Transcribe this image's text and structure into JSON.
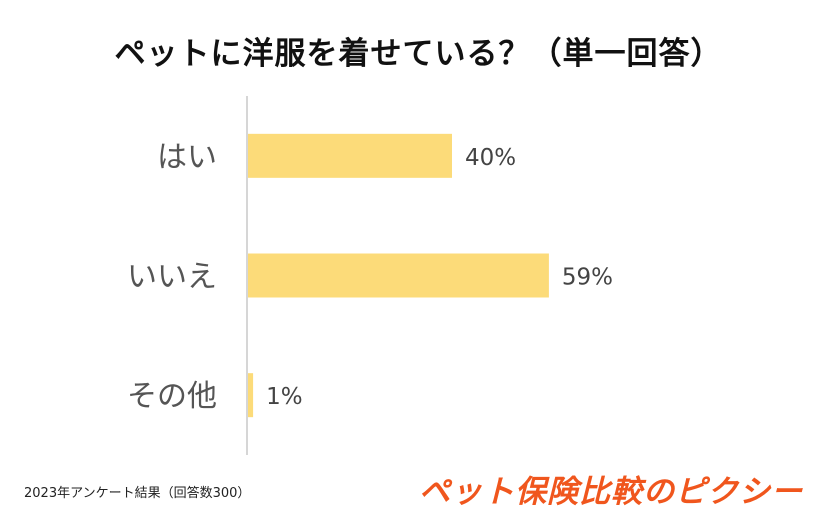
{
  "title": "ペットに洋服を着せている？（単一回答）",
  "footnote": "2023年アンケート結果（回答数300）",
  "brand": "ペット保険比較のピクシー",
  "colors": {
    "bar": "#fcdb79",
    "axis": "#c8c8c8",
    "label": "#555555",
    "brand": "#f0561d"
  },
  "chart_data": {
    "type": "bar",
    "orientation": "horizontal",
    "categories": [
      "はい",
      "いいえ",
      "その他"
    ],
    "values": [
      40,
      59,
      1
    ],
    "value_labels": [
      "40%",
      "59%",
      "1%"
    ],
    "unit": "%",
    "xlim": [
      0,
      100
    ],
    "grid": false,
    "legend": "none"
  }
}
